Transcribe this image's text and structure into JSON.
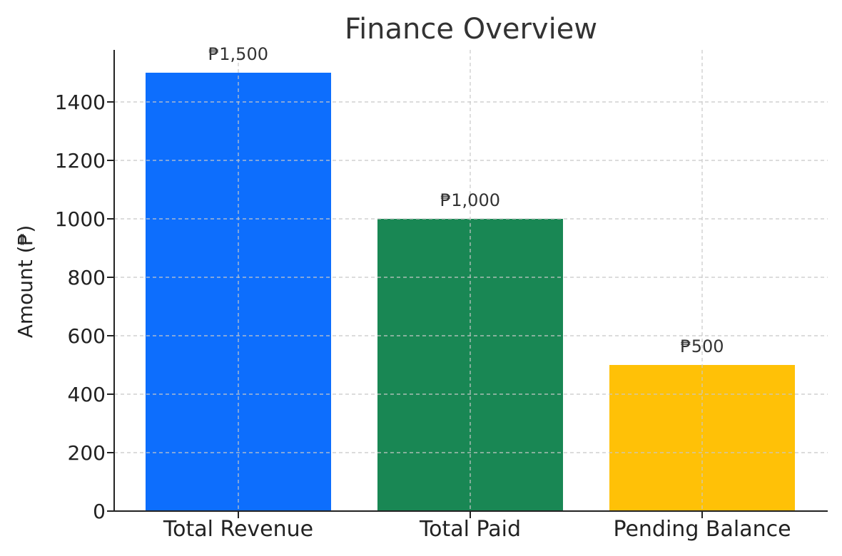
{
  "chart_data": {
    "type": "bar",
    "title": "Finance Overview",
    "xlabel": "",
    "ylabel": "Amount (₱)",
    "categories": [
      "Total Revenue",
      "Total Paid",
      "Pending Balance"
    ],
    "values": [
      1500,
      1000,
      500
    ],
    "data_labels": [
      "₱1,500",
      "₱1,000",
      "₱500"
    ],
    "colors": [
      "#0d6efd",
      "#198754",
      "#ffc107"
    ],
    "ylim": [
      0,
      1500
    ],
    "yticks": [
      0,
      200,
      400,
      600,
      800,
      1000,
      1200,
      1400
    ],
    "grid": true,
    "legend": "none"
  }
}
